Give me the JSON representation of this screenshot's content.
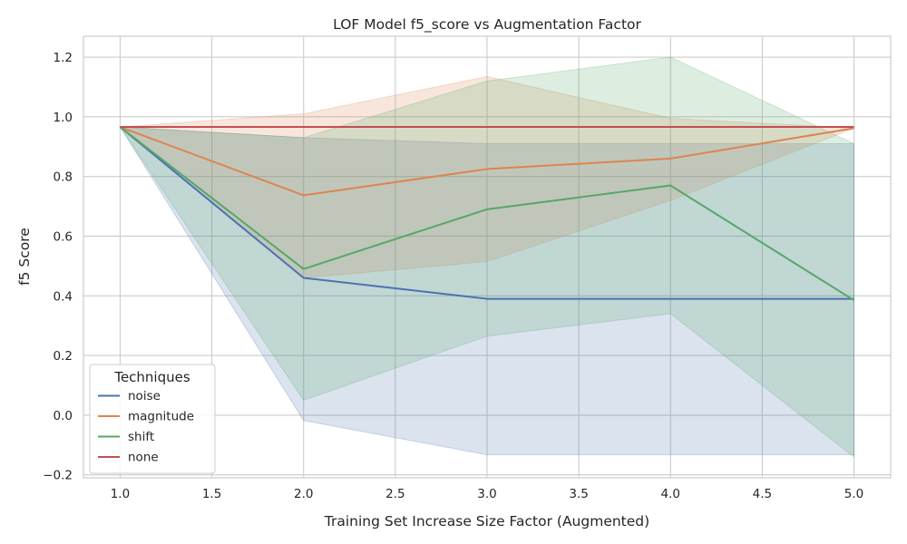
{
  "chart_data": {
    "type": "line",
    "title": "LOF Model f5_score vs Augmentation Factor",
    "xlabel": "Training Set Increase Size Factor (Augmented)",
    "ylabel": "f5 Score",
    "xlim": [
      0.8,
      5.2
    ],
    "ylim": [
      -0.21,
      1.27
    ],
    "xticks": [
      1.0,
      1.5,
      2.0,
      2.5,
      3.0,
      3.5,
      4.0,
      4.5,
      5.0
    ],
    "xtick_labels": [
      "1.0",
      "1.5",
      "2.0",
      "2.5",
      "3.0",
      "3.5",
      "4.0",
      "4.5",
      "5.0"
    ],
    "yticks": [
      -0.2,
      0.0,
      0.2,
      0.4,
      0.6,
      0.8,
      1.0,
      1.2
    ],
    "ytick_labels": [
      "−0.2",
      "0.0",
      "0.2",
      "0.4",
      "0.6",
      "0.8",
      "1.0",
      "1.2"
    ],
    "grid": true,
    "legend": {
      "title": "Techniques",
      "placement": "lower-left"
    },
    "x": [
      1,
      2,
      3,
      4,
      5
    ],
    "series": [
      {
        "name": "noise",
        "color": "#4c72b0",
        "values": [
          0.966,
          0.46,
          0.39,
          0.39,
          0.39
        ],
        "lower": [
          0.966,
          -0.018,
          -0.133,
          -0.133,
          -0.133
        ],
        "upper": [
          0.966,
          0.93,
          0.91,
          0.91,
          0.91
        ]
      },
      {
        "name": "magnitude",
        "color": "#dd8452",
        "values": [
          0.966,
          0.737,
          0.825,
          0.86,
          0.962
        ],
        "lower": [
          0.966,
          0.46,
          0.515,
          0.72,
          0.962
        ],
        "upper": [
          0.966,
          1.01,
          1.135,
          0.995,
          0.962
        ]
      },
      {
        "name": "shift",
        "color": "#55a868",
        "values": [
          0.966,
          0.49,
          0.69,
          0.77,
          0.385
        ],
        "lower": [
          0.966,
          0.05,
          0.265,
          0.34,
          -0.14
        ],
        "upper": [
          0.966,
          0.93,
          1.12,
          1.2,
          0.91
        ]
      },
      {
        "name": "none",
        "color": "#c44e52",
        "values": [
          0.966,
          0.966,
          0.966,
          0.966,
          0.966
        ]
      }
    ]
  }
}
